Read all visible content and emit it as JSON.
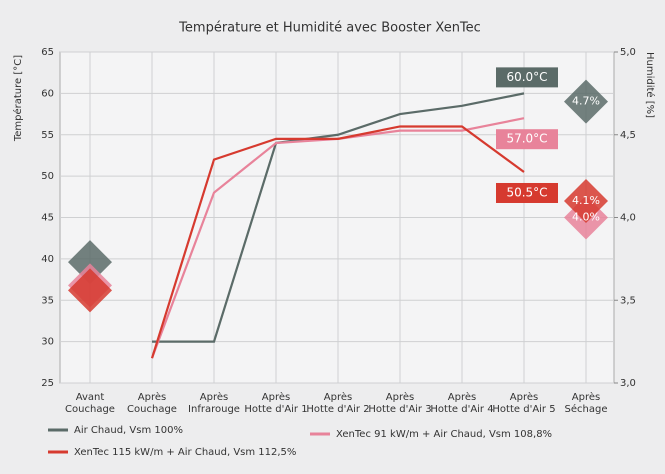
{
  "chart_data": {
    "type": "line",
    "title": "Température et Humidité avec Booster XenTec",
    "ylabel": "Température [°C]",
    "y2label": "Humidité [%]",
    "categories": [
      "Avant Couchage",
      "Après Couchage",
      "Après Infrarouge",
      "Après Hotte d'Air 1",
      "Après Hotte d'Air 2",
      "Après Hotte d'Air 3",
      "Après Hotte d'Air 4",
      "Après Hotte d'Air 5",
      "Après Séchage"
    ],
    "ylim": [
      25,
      65
    ],
    "yticks": [
      25,
      30,
      35,
      40,
      45,
      50,
      55,
      60,
      65
    ],
    "y2lim": [
      3.0,
      5.0
    ],
    "y2ticks": [
      {
        "value": 3.0,
        "label": "3,0"
      },
      {
        "value": 3.5,
        "label": "3,5"
      },
      {
        "value": 4.0,
        "label": "4,0"
      },
      {
        "value": 4.5,
        "label": "4,5"
      },
      {
        "value": 5.0,
        "label": "5,0"
      }
    ],
    "grid": true,
    "series": [
      {
        "name": "Air Chaud, Vsm 100%",
        "color": "#5b6b68",
        "values": [
          null,
          30,
          30,
          54,
          55,
          57.5,
          58.5,
          60,
          null
        ],
        "value_labels": [
          null,
          null,
          null,
          null,
          null,
          null,
          null,
          "60.0°C",
          null
        ],
        "humidity": [
          3.73,
          null,
          null,
          null,
          null,
          null,
          null,
          null,
          4.7
        ],
        "humidity_labels": [
          null,
          null,
          null,
          null,
          null,
          null,
          null,
          null,
          "4.7%"
        ]
      },
      {
        "name": "XenTec 91 kW/m + Air Chaud, Vsm 108,8%",
        "color": "#e8839a",
        "values": [
          null,
          28,
          48,
          54,
          54.5,
          55.5,
          55.5,
          57,
          null
        ],
        "value_labels": [
          null,
          null,
          null,
          null,
          null,
          null,
          null,
          "57.0°C",
          null
        ],
        "humidity": [
          3.59,
          null,
          null,
          null,
          null,
          null,
          null,
          null,
          4.0
        ],
        "humidity_labels": [
          null,
          null,
          null,
          null,
          null,
          null,
          null,
          null,
          "4.0%"
        ]
      },
      {
        "name": "XenTec 115 kW/m + Air Chaud, Vsm 112,5%",
        "color": "#d63a2f",
        "values": [
          null,
          28,
          52,
          54.5,
          54.5,
          56,
          56,
          50.5,
          null
        ],
        "value_labels": [
          null,
          null,
          null,
          null,
          null,
          null,
          null,
          "50.5°C",
          null
        ],
        "humidity": [
          3.56,
          null,
          null,
          null,
          null,
          null,
          null,
          null,
          4.1
        ],
        "humidity_labels": [
          null,
          null,
          null,
          null,
          null,
          null,
          null,
          null,
          "4.1%"
        ]
      }
    ]
  }
}
